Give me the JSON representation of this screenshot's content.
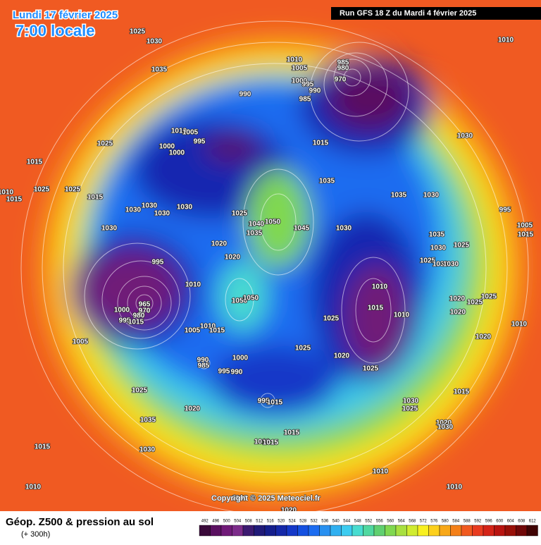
{
  "header": {
    "date": "Lundi 17 février 2025",
    "time": "7:00 locale",
    "run": "Run GFS 18 Z du Mardi 4 février 2025"
  },
  "copyright": "Copyright © 2025 Meteociel.fr",
  "footer": {
    "title": "Géop. Z500 & pression au sol",
    "subtitle": "(+ 300h)"
  },
  "colorbar": {
    "ticks": [
      492,
      496,
      500,
      504,
      508,
      512,
      516,
      520,
      524,
      528,
      532,
      536,
      540,
      544,
      548,
      552,
      556,
      560,
      564,
      568,
      572,
      576,
      580,
      584,
      588,
      592,
      596,
      600,
      604,
      608,
      612
    ],
    "colors": [
      "#3a0a3a",
      "#5a1060",
      "#701a78",
      "#7c2c8a",
      "#3c1a70",
      "#201a78",
      "#141e8c",
      "#1428a8",
      "#1438c8",
      "#1450e0",
      "#1c6cf0",
      "#2890f0",
      "#30b0f0",
      "#3cccf0",
      "#48dcd0",
      "#50d8a0",
      "#60d070",
      "#80d850",
      "#a8e040",
      "#d0ec30",
      "#f8f020",
      "#fcd01c",
      "#f8a818",
      "#f48018",
      "#f05a20",
      "#e83c20",
      "#d42418",
      "#b81410",
      "#981008",
      "#700808",
      "#400404"
    ]
  },
  "isobar_labels": [
    1025,
    1030,
    1035,
    1010,
    1005,
    1000,
    995,
    990,
    985,
    980,
    970,
    990,
    985,
    1010,
    1005,
    995,
    1000,
    1000,
    1025,
    1015,
    1030,
    1010,
    1015,
    1025,
    1025,
    1010,
    1015,
    1015,
    1035,
    1035,
    1030,
    1030,
    1030,
    1030,
    1030,
    1025,
    1050,
    1040,
    1035,
    1045,
    1030,
    1030,
    1035,
    1030,
    1025,
    995,
    1005,
    1015,
    1020,
    1020,
    995,
    1010,
    1025,
    1030,
    1030,
    1010,
    1015,
    1020,
    1025,
    1025,
    1020,
    1050,
    1050,
    1000,
    965,
    970,
    980,
    995,
    1015,
    1010,
    1025,
    1010,
    1010,
    1005,
    1015,
    1020,
    1005,
    1025,
    1020,
    1000,
    990,
    985,
    995,
    990,
    1025,
    1025,
    1015,
    1030,
    1025,
    995,
    1015,
    1035,
    1020,
    1020,
    1030,
    1015,
    1010,
    1015,
    1015,
    1030,
    1010,
    1010,
    1010,
    1000,
    1020
  ]
}
